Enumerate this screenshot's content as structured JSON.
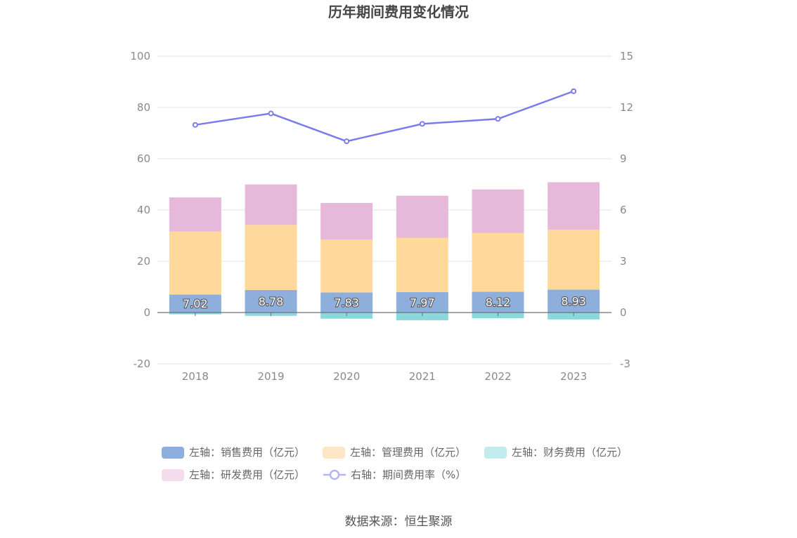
{
  "chart_data": {
    "type": "bar",
    "title": "历年期间费用变化情况",
    "categories": [
      "2018",
      "2019",
      "2020",
      "2021",
      "2022",
      "2023"
    ],
    "y_left": {
      "ylim": [
        -20,
        100
      ],
      "ticks": [
        "-20",
        "0",
        "20",
        "40",
        "60",
        "80",
        "100"
      ]
    },
    "y_right": {
      "ylim": [
        -3,
        15
      ],
      "ticks": [
        "-3",
        "0",
        "3",
        "6",
        "9",
        "12",
        "15"
      ]
    },
    "grid": true,
    "legend_position": "bottom",
    "series": [
      {
        "name": "左轴：销售费用（亿元）",
        "type": "bar",
        "axis": "left",
        "color": "#8eaedc",
        "legend_color": "#8eaedc",
        "show_labels": true,
        "values": [
          7.02,
          8.78,
          7.83,
          7.97,
          8.12,
          8.93
        ],
        "labels": [
          "7.02",
          "8.78",
          "7.83",
          "7.97",
          "8.12",
          "8.93"
        ]
      },
      {
        "name": "左轴：管理费用（亿元）",
        "type": "bar",
        "axis": "left",
        "color": "#ffd99b",
        "legend_color": "#fde7c4",
        "values": [
          24.6,
          25.4,
          20.6,
          21.2,
          22.9,
          23.4
        ]
      },
      {
        "name": "左轴：财务费用（亿元）",
        "type": "bar",
        "axis": "left",
        "color": "#8ad8dc",
        "legend_color": "#c3ecee",
        "values": [
          -0.7,
          -1.3,
          -2.4,
          -3.0,
          -2.2,
          -2.7
        ]
      },
      {
        "name": "左轴：研发费用（亿元）",
        "type": "bar",
        "axis": "left",
        "color": "#e6b9db",
        "legend_color": "#f4dcee",
        "values": [
          13.3,
          15.8,
          14.3,
          16.4,
          17.0,
          18.5
        ]
      },
      {
        "name": "右轴：期间费用率（%）",
        "type": "line",
        "axis": "right",
        "color": "#7b7cec",
        "legend_color": "#b4b6f3",
        "values": [
          10.98,
          11.65,
          10.02,
          11.04,
          11.33,
          12.95
        ]
      }
    ]
  },
  "source": "数据来源：恒生聚源"
}
